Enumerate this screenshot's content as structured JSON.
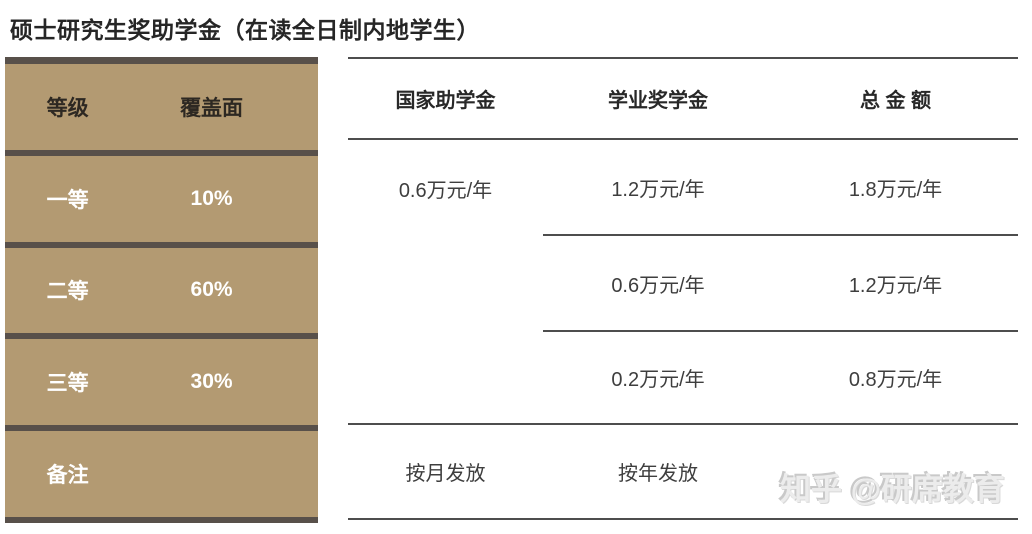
{
  "title": "硕士研究生奖助学金（在读全日制内地学生）",
  "colors": {
    "tan_background": "#b39a72",
    "dark_bar": "#58504a",
    "table_line": "#4d4d4d",
    "title_text": "#262626",
    "left_header_text": "#2d2822",
    "left_data_text": "#ffffff",
    "right_text": "#3e3e3e",
    "watermark_text": "#ececec"
  },
  "left_table": {
    "headers": {
      "level": "等级",
      "coverage": "覆盖面"
    },
    "rows": [
      {
        "level": "一等",
        "coverage": "10%"
      },
      {
        "level": "二等",
        "coverage": "60%"
      },
      {
        "level": "三等",
        "coverage": "30%"
      },
      {
        "level": "备注",
        "coverage": ""
      }
    ]
  },
  "right_table": {
    "headers": [
      "国家助学金",
      "学业奖学金",
      "总 金 额"
    ],
    "rows": [
      [
        "0.6万元/年",
        "1.2万元/年",
        "1.8万元/年"
      ],
      [
        "",
        "0.6万元/年",
        "1.2万元/年"
      ],
      [
        "",
        "0.2万元/年",
        "0.8万元/年"
      ],
      [
        "按月发放",
        "按年发放",
        ""
      ]
    ]
  },
  "watermark": "知乎 @研席教育",
  "chart_data": {
    "type": "table",
    "title": "硕士研究生奖助学金（在读全日制内地学生）",
    "columns": [
      "等级",
      "覆盖面",
      "国家助学金",
      "学业奖学金",
      "总金额"
    ],
    "rows": [
      [
        "一等",
        "10%",
        "0.6万元/年",
        "1.2万元/年",
        "1.8万元/年"
      ],
      [
        "二等",
        "60%",
        "",
        "0.6万元/年",
        "1.2万元/年"
      ],
      [
        "三等",
        "30%",
        "",
        "0.2万元/年",
        "0.8万元/年"
      ],
      [
        "备注",
        "",
        "按月发放",
        "按年发放",
        ""
      ]
    ]
  }
}
